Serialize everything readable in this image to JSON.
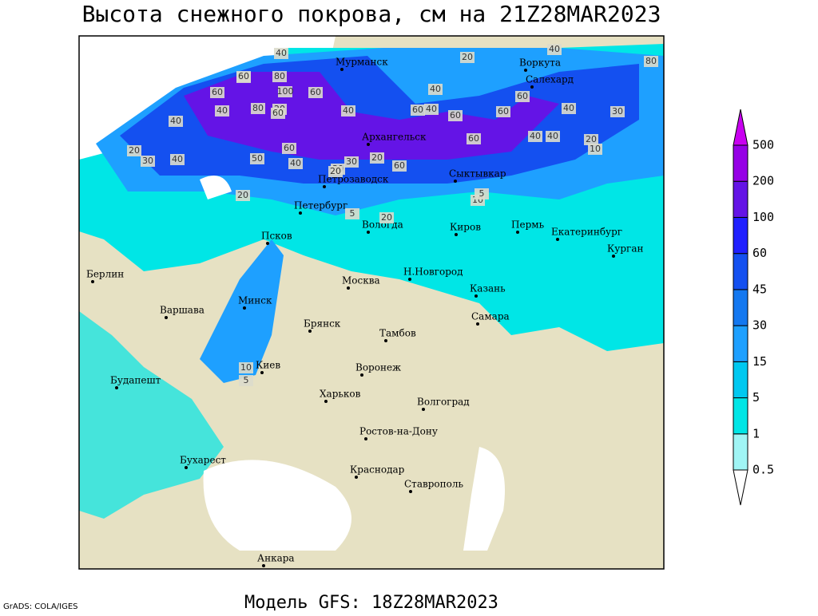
{
  "header": {
    "title": "Высота снежного покрова, см на 21Z28MAR2023"
  },
  "footer": {
    "model": "Модель GFS: 18Z28MAR2023",
    "credit": "GrADS: COLA/IGES"
  },
  "cities": [
    "Мурманск",
    "Воркута",
    "Салехард",
    "Архангельск",
    "Петрозаводск",
    "Сыктывкар",
    "Петербург",
    "Вологда",
    "Киров",
    "Пермь",
    "Екатеринбург",
    "Курган",
    "Псков",
    "Берлин",
    "Н.Новгород",
    "Москва",
    "Казань",
    "Минск",
    "Варшава",
    "Самара",
    "Брянск",
    "Тамбов",
    "Киев",
    "Воронеж",
    "Будапешт",
    "Харьков",
    "Волгоград",
    "Ростов-на-Дону",
    "Бухарест",
    "Краснодар",
    "Ставрополь",
    "Анкара"
  ],
  "contour_labels": [
    40,
    20,
    40,
    60,
    80,
    100,
    60,
    80,
    40,
    60,
    20,
    40,
    30,
    40,
    40,
    60,
    60,
    40,
    60,
    30,
    20,
    60,
    40,
    60,
    40,
    30,
    60,
    40,
    40,
    20,
    10,
    80,
    60,
    50,
    60,
    20,
    20,
    30,
    60,
    20,
    10,
    5,
    10,
    5,
    5,
    20,
    40
  ],
  "colorbar": {
    "levels": [
      0.5,
      1,
      5,
      15,
      30,
      45,
      60,
      100,
      200,
      500
    ],
    "colors": [
      "#ffffff",
      "#a0f5f5",
      "#00e6e6",
      "#00c8f0",
      "#1ea0ff",
      "#1478f0",
      "#1450f0",
      "#2020ff",
      "#6414e6",
      "#9600e6",
      "#c800f0"
    ]
  }
}
